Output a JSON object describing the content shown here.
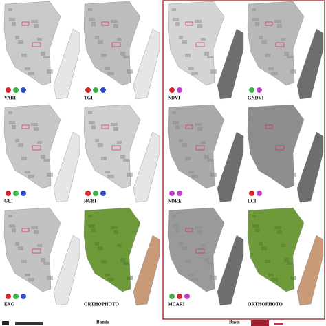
{
  "panels": [
    {
      "label": "VARI"
    },
    {
      "label": "TGI"
    },
    {
      "label": "GLI"
    },
    {
      "label": "RGBI"
    },
    {
      "label": "EXG"
    },
    {
      "label": "ORTHOPHOTO"
    },
    {
      "label": "NDVI"
    },
    {
      "label": "GNDVI"
    },
    {
      "label": "NDRE"
    },
    {
      "label": "LCI"
    },
    {
      "label": "MCARI"
    },
    {
      "label": "ORTHOPHOTO"
    }
  ],
  "footer": {
    "left": "Bands",
    "right": "Basis"
  }
}
